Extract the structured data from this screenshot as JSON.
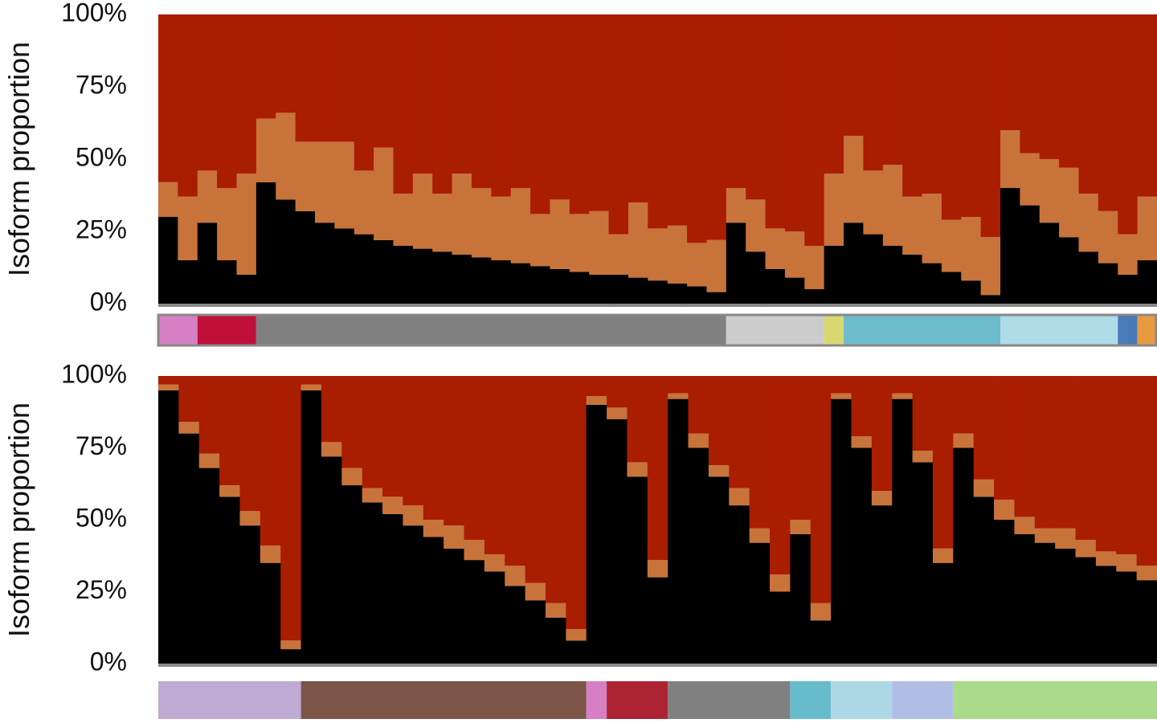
{
  "chart_data": [
    {
      "type": "stacked_bar",
      "ylabel": "Isoform proportion",
      "ylim": [
        0,
        100
      ],
      "yticks": [
        {
          "value": 0,
          "label": "0%"
        },
        {
          "value": 25,
          "label": "25%"
        },
        {
          "value": 50,
          "label": "50%"
        },
        {
          "value": 75,
          "label": "75%"
        },
        {
          "value": 100,
          "label": "100%"
        }
      ],
      "series": [
        {
          "color": "#000000",
          "values": [
            30,
            15,
            28,
            15,
            10,
            42,
            36,
            32,
            28,
            26,
            24,
            22,
            20,
            19,
            18,
            17,
            16,
            15,
            14,
            13,
            12,
            11,
            10,
            10,
            9,
            8,
            7,
            6,
            4,
            28,
            18,
            12,
            9,
            5,
            20,
            28,
            24,
            20,
            17,
            14,
            11,
            8,
            3,
            40,
            34,
            28,
            23,
            18,
            14,
            10,
            15
          ]
        },
        {
          "color": "#c8733a",
          "values": [
            12,
            22,
            18,
            25,
            35,
            22,
            30,
            24,
            28,
            30,
            22,
            32,
            18,
            26,
            20,
            28,
            24,
            22,
            26,
            18,
            24,
            20,
            22,
            14,
            26,
            18,
            20,
            15,
            18,
            12,
            18,
            14,
            16,
            15,
            25,
            30,
            22,
            28,
            20,
            24,
            18,
            22,
            20,
            20,
            18,
            22,
            24,
            20,
            18,
            14,
            22
          ]
        },
        {
          "color": "#a91d00",
          "values": [
            58,
            63,
            54,
            60,
            55,
            36,
            34,
            44,
            44,
            44,
            54,
            46,
            62,
            55,
            62,
            55,
            60,
            63,
            60,
            69,
            64,
            69,
            68,
            76,
            65,
            74,
            73,
            79,
            78,
            60,
            64,
            74,
            75,
            80,
            55,
            42,
            54,
            52,
            63,
            62,
            71,
            70,
            77,
            40,
            48,
            50,
            53,
            62,
            68,
            76,
            63
          ]
        }
      ],
      "groups": [
        {
          "color": "#d67fc4",
          "n": 2
        },
        {
          "color": "#c0103a",
          "n": 3
        },
        {
          "color": "#808080",
          "n": 24
        },
        {
          "color": "#cccccc",
          "n": 5
        },
        {
          "color": "#d8d870",
          "n": 1
        },
        {
          "color": "#6cbccc",
          "n": 8
        },
        {
          "color": "#b0dce8",
          "n": 6
        },
        {
          "color": "#4a7ab8",
          "n": 1
        },
        {
          "color": "#e89a40",
          "n": 1
        }
      ]
    },
    {
      "type": "stacked_bar",
      "ylabel": "Isoform proportion",
      "ylim": [
        0,
        100
      ],
      "yticks": [
        {
          "value": 0,
          "label": "0%"
        },
        {
          "value": 25,
          "label": "25%"
        },
        {
          "value": 50,
          "label": "50%"
        },
        {
          "value": 75,
          "label": "75%"
        },
        {
          "value": 100,
          "label": "100%"
        }
      ],
      "series": [
        {
          "color": "#000000",
          "values": [
            95,
            80,
            68,
            58,
            48,
            35,
            5,
            95,
            72,
            62,
            56,
            52,
            48,
            44,
            40,
            36,
            32,
            27,
            22,
            16,
            8,
            90,
            85,
            65,
            30,
            92,
            75,
            65,
            55,
            42,
            25,
            45,
            15,
            92,
            75,
            55,
            92,
            70,
            35,
            75,
            58,
            50,
            45,
            42,
            40,
            37,
            34,
            32,
            29
          ]
        },
        {
          "color": "#c8733a",
          "values": [
            2,
            4,
            5,
            4,
            5,
            6,
            3,
            2,
            5,
            6,
            5,
            6,
            7,
            6,
            8,
            7,
            6,
            7,
            6,
            5,
            4,
            3,
            4,
            5,
            6,
            2,
            5,
            4,
            6,
            5,
            6,
            5,
            6,
            2,
            4,
            5,
            2,
            4,
            5,
            5,
            6,
            7,
            6,
            5,
            7,
            6,
            5,
            6,
            5
          ]
        },
        {
          "color": "#a91d00",
          "values": [
            3,
            16,
            27,
            38,
            47,
            59,
            92,
            3,
            23,
            32,
            39,
            42,
            45,
            50,
            52,
            57,
            62,
            66,
            72,
            79,
            88,
            7,
            11,
            30,
            64,
            6,
            20,
            31,
            39,
            53,
            69,
            50,
            79,
            6,
            21,
            40,
            6,
            26,
            60,
            20,
            36,
            43,
            49,
            53,
            53,
            57,
            61,
            62,
            66
          ]
        }
      ],
      "groups": [
        {
          "color": "#bfaad3",
          "n": 7
        },
        {
          "color": "#7a5548",
          "n": 14
        },
        {
          "color": "#d67fc4",
          "n": 1
        },
        {
          "color": "#ad2333",
          "n": 3
        },
        {
          "color": "#808080",
          "n": 6
        },
        {
          "color": "#66bccb",
          "n": 2
        },
        {
          "color": "#add8e6",
          "n": 3
        },
        {
          "color": "#b0bee6",
          "n": 3
        },
        {
          "color": "#aadb8a",
          "n": 10
        }
      ]
    }
  ]
}
